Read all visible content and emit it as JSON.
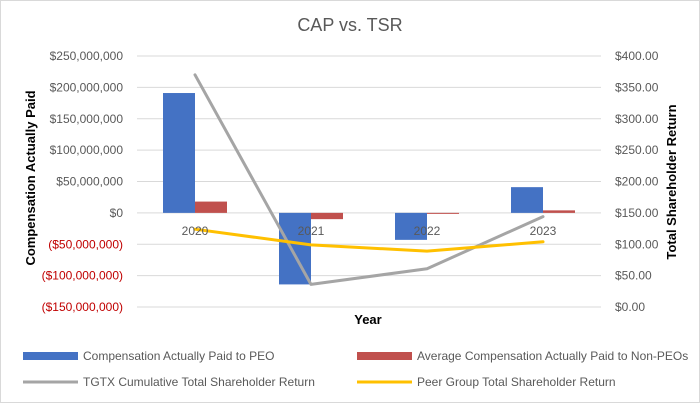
{
  "chart_data": {
    "type": "bar",
    "title": "CAP vs. TSR",
    "categories": [
      "2020",
      "2021",
      "2022",
      "2023"
    ],
    "xlabel": "Year",
    "ylabel": "Compensation Actually Paid",
    "y2label": "Total Shareholder Return",
    "ylim": [
      -150000000,
      250000000
    ],
    "y2lim": [
      0,
      400
    ],
    "yticks": [
      250000000,
      200000000,
      150000000,
      100000000,
      50000000,
      0,
      -50000000,
      -100000000,
      -150000000
    ],
    "ytick_labels": [
      "$250,000,000",
      "$200,000,000",
      "$150,000,000",
      "$100,000,000",
      "$50,000,000",
      "$0",
      "($50,000,000)",
      "($100,000,000)",
      "($150,000,000)"
    ],
    "y2ticks": [
      400,
      350,
      300,
      250,
      200,
      150,
      100,
      50,
      0
    ],
    "y2tick_labels": [
      "$400.00",
      "$350.00",
      "$300.00",
      "$250.00",
      "$200.00",
      "$150.00",
      "$100.00",
      "$50.00",
      "$0.00"
    ],
    "bar_series": [
      {
        "name": "Compensation Actually Paid to PEO",
        "color": "#4472c4",
        "values": [
          191000000,
          -114000000,
          -43000000,
          41000000
        ]
      },
      {
        "name": "Average Compensation Actually Paid to Non-PEOs",
        "color": "#c0504d",
        "values": [
          18000000,
          -10000000,
          -1000000,
          4000000
        ]
      }
    ],
    "line_series": [
      {
        "name": "TGTX Cumulative Total Shareholder Return",
        "color": "#a5a5a5",
        "axis": "right",
        "values": [
          370,
          36,
          61,
          144
        ]
      },
      {
        "name": "Peer Group Total Shareholder Return",
        "color": "#ffc000",
        "axis": "right",
        "values": [
          124,
          99,
          89,
          104
        ]
      }
    ],
    "negative_tick_color": "#c00000",
    "positive_tick_color": "#595959",
    "grid": true,
    "legend": "bottom"
  }
}
